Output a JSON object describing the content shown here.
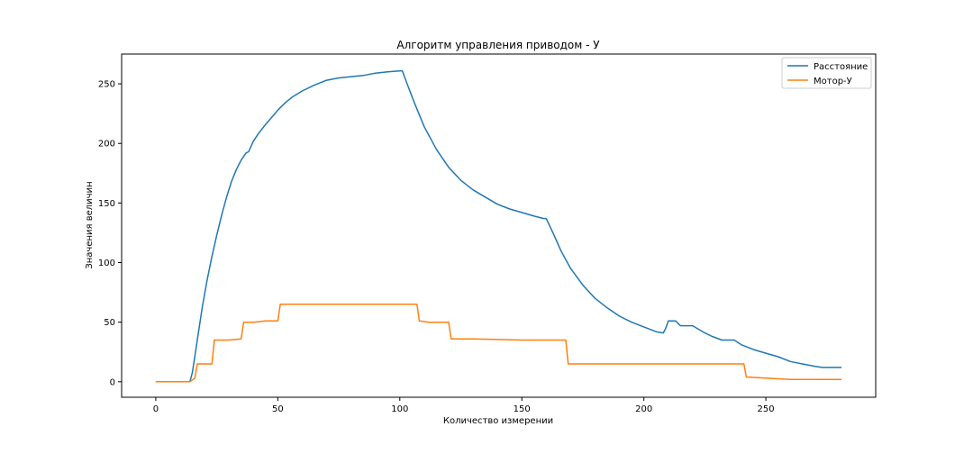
{
  "chart_data": {
    "type": "line",
    "title": "Алгоритм управления приводом - У",
    "xlabel": "Количество измерении",
    "ylabel": "Значения величин",
    "xlim": [
      -14,
      295
    ],
    "ylim": [
      -13,
      275
    ],
    "xticks": [
      0,
      50,
      100,
      150,
      200,
      250
    ],
    "yticks": [
      0,
      50,
      100,
      150,
      200,
      250
    ],
    "grid": false,
    "legend_position": "top-right",
    "series": [
      {
        "name": "Расстояние",
        "color": "#1f77b4",
        "points": [
          [
            0,
            0
          ],
          [
            14,
            0
          ],
          [
            15,
            8
          ],
          [
            17,
            35
          ],
          [
            19,
            62
          ],
          [
            21,
            85
          ],
          [
            23,
            105
          ],
          [
            25,
            123
          ],
          [
            27,
            140
          ],
          [
            29,
            155
          ],
          [
            31,
            168
          ],
          [
            33,
            178
          ],
          [
            35,
            186
          ],
          [
            37,
            192
          ],
          [
            38,
            193
          ],
          [
            40,
            202
          ],
          [
            42,
            208
          ],
          [
            45,
            216
          ],
          [
            48,
            223
          ],
          [
            50,
            228
          ],
          [
            53,
            234
          ],
          [
            56,
            239
          ],
          [
            60,
            244
          ],
          [
            65,
            249
          ],
          [
            70,
            253
          ],
          [
            75,
            255
          ],
          [
            80,
            256
          ],
          [
            85,
            257
          ],
          [
            90,
            259
          ],
          [
            95,
            260
          ],
          [
            101,
            261
          ],
          [
            103,
            250
          ],
          [
            106,
            234
          ],
          [
            110,
            214
          ],
          [
            115,
            195
          ],
          [
            120,
            180
          ],
          [
            125,
            169
          ],
          [
            130,
            161
          ],
          [
            135,
            155
          ],
          [
            140,
            149
          ],
          [
            145,
            145
          ],
          [
            150,
            142
          ],
          [
            155,
            139
          ],
          [
            159,
            137
          ],
          [
            160,
            137
          ],
          [
            163,
            124
          ],
          [
            166,
            110
          ],
          [
            170,
            95
          ],
          [
            175,
            81
          ],
          [
            180,
            70
          ],
          [
            185,
            62
          ],
          [
            190,
            55
          ],
          [
            195,
            50
          ],
          [
            200,
            46
          ],
          [
            205,
            42
          ],
          [
            208,
            41
          ],
          [
            209,
            45
          ],
          [
            210,
            51
          ],
          [
            213,
            51
          ],
          [
            215,
            47
          ],
          [
            220,
            47
          ],
          [
            225,
            41
          ],
          [
            228,
            38
          ],
          [
            232,
            35
          ],
          [
            237,
            35
          ],
          [
            240,
            31
          ],
          [
            245,
            27
          ],
          [
            250,
            24
          ],
          [
            255,
            21
          ],
          [
            260,
            17
          ],
          [
            265,
            15
          ],
          [
            270,
            13
          ],
          [
            273,
            12
          ],
          [
            281,
            12
          ]
        ]
      },
      {
        "name": "Мотор-У",
        "color": "#ff7f0e",
        "points": [
          [
            0,
            0
          ],
          [
            14,
            0
          ],
          [
            16,
            3
          ],
          [
            17,
            15
          ],
          [
            23,
            15
          ],
          [
            24,
            35
          ],
          [
            30,
            35
          ],
          [
            35,
            36
          ],
          [
            36,
            50
          ],
          [
            40,
            50
          ],
          [
            45,
            51
          ],
          [
            50,
            51
          ],
          [
            51,
            65
          ],
          [
            60,
            65
          ],
          [
            70,
            65
          ],
          [
            80,
            65
          ],
          [
            100,
            65
          ],
          [
            107,
            65
          ],
          [
            108,
            51
          ],
          [
            112,
            50
          ],
          [
            120,
            50
          ],
          [
            121,
            36
          ],
          [
            130,
            36
          ],
          [
            150,
            35
          ],
          [
            160,
            35
          ],
          [
            168,
            35
          ],
          [
            169,
            15
          ],
          [
            180,
            15
          ],
          [
            200,
            15
          ],
          [
            220,
            15
          ],
          [
            241,
            15
          ],
          [
            242,
            4
          ],
          [
            250,
            3
          ],
          [
            260,
            2
          ],
          [
            270,
            2
          ],
          [
            281,
            2
          ]
        ]
      }
    ]
  }
}
